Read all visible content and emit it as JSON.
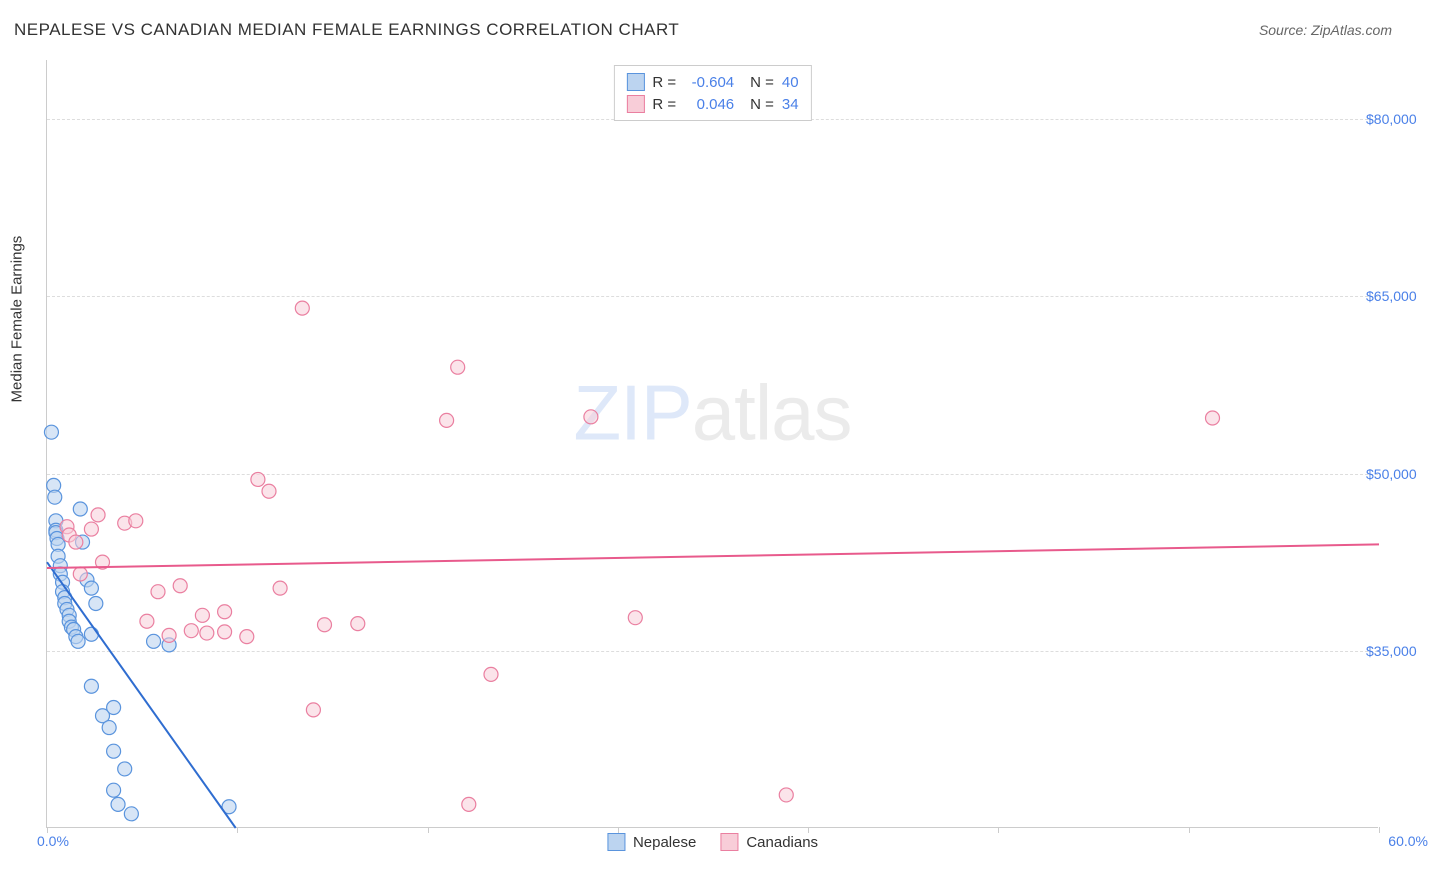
{
  "header": {
    "title": "NEPALESE VS CANADIAN MEDIAN FEMALE EARNINGS CORRELATION CHART",
    "source": "Source: ZipAtlas.com"
  },
  "watermark": {
    "part1": "ZIP",
    "part2": "atlas"
  },
  "chart": {
    "type": "scatter",
    "yaxis_title": "Median Female Earnings",
    "xlim": [
      0,
      60
    ],
    "ylim": [
      20000,
      85000
    ],
    "ytick_values": [
      35000,
      50000,
      65000,
      80000
    ],
    "ytick_labels": [
      "$35,000",
      "$50,000",
      "$65,000",
      "$80,000"
    ],
    "xtick_values": [
      0,
      8.57,
      17.14,
      25.71,
      34.29,
      42.86,
      51.43,
      60
    ],
    "xlabel_start": "0.0%",
    "xlabel_end": "60.0%",
    "background_color": "#ffffff",
    "grid_color": "#dddddd",
    "axis_color": "#cccccc",
    "marker_radius": 7,
    "marker_stroke_width": 1.2,
    "trend_line_width": 2,
    "label_color": "#4a80e8",
    "text_color": "#333333",
    "series": [
      {
        "name": "Nepalese",
        "fill": "#bcd4f0",
        "stroke": "#5a94dd",
        "fill_opacity": 0.6,
        "r": -0.604,
        "n": 40,
        "trend": {
          "x1": 0,
          "y1": 42500,
          "x2": 8.5,
          "y2": 20000,
          "color": "#2f6dd0"
        },
        "points": [
          [
            0.2,
            53500
          ],
          [
            0.3,
            49000
          ],
          [
            0.35,
            48000
          ],
          [
            0.4,
            46000
          ],
          [
            0.4,
            45200
          ],
          [
            0.4,
            45000
          ],
          [
            0.45,
            44500
          ],
          [
            0.5,
            44000
          ],
          [
            0.5,
            43000
          ],
          [
            0.6,
            42200
          ],
          [
            0.6,
            41500
          ],
          [
            0.7,
            40800
          ],
          [
            0.7,
            40000
          ],
          [
            0.8,
            39500
          ],
          [
            0.8,
            39000
          ],
          [
            0.9,
            38500
          ],
          [
            1.0,
            38000
          ],
          [
            1.0,
            37500
          ],
          [
            1.1,
            37000
          ],
          [
            1.2,
            36800
          ],
          [
            1.3,
            36200
          ],
          [
            1.4,
            35800
          ],
          [
            1.5,
            47000
          ],
          [
            1.6,
            44200
          ],
          [
            1.8,
            41000
          ],
          [
            2.0,
            40300
          ],
          [
            2.0,
            36400
          ],
          [
            2.2,
            39000
          ],
          [
            2.5,
            29500
          ],
          [
            2.8,
            28500
          ],
          [
            3.0,
            30200
          ],
          [
            3.0,
            26500
          ],
          [
            3.5,
            25000
          ],
          [
            3.0,
            23200
          ],
          [
            3.2,
            22000
          ],
          [
            3.8,
            21200
          ],
          [
            4.8,
            35800
          ],
          [
            5.5,
            35500
          ],
          [
            8.2,
            21800
          ],
          [
            2.0,
            32000
          ]
        ]
      },
      {
        "name": "Canadians",
        "fill": "#f8cdd8",
        "stroke": "#ea7fa0",
        "fill_opacity": 0.55,
        "r": 0.046,
        "n": 34,
        "trend": {
          "x1": 0,
          "y1": 42000,
          "x2": 60,
          "y2": 44000,
          "color": "#e85a8c"
        },
        "points": [
          [
            0.9,
            45500
          ],
          [
            1.0,
            44800
          ],
          [
            1.3,
            44200
          ],
          [
            1.5,
            41500
          ],
          [
            2.0,
            45300
          ],
          [
            2.3,
            46500
          ],
          [
            2.5,
            42500
          ],
          [
            3.5,
            45800
          ],
          [
            4.0,
            46000
          ],
          [
            4.5,
            37500
          ],
          [
            5.0,
            40000
          ],
          [
            5.5,
            36300
          ],
          [
            6.0,
            40500
          ],
          [
            6.5,
            36700
          ],
          [
            7.0,
            38000
          ],
          [
            7.2,
            36500
          ],
          [
            8.0,
            36600
          ],
          [
            8.0,
            38300
          ],
          [
            9.5,
            49500
          ],
          [
            10.0,
            48500
          ],
          [
            10.5,
            40300
          ],
          [
            11.5,
            64000
          ],
          [
            12.5,
            37200
          ],
          [
            12.0,
            30000
          ],
          [
            14.0,
            37300
          ],
          [
            18.5,
            59000
          ],
          [
            18.0,
            54500
          ],
          [
            20.0,
            33000
          ],
          [
            24.5,
            54800
          ],
          [
            26.5,
            37800
          ],
          [
            19.0,
            22000
          ],
          [
            33.3,
            22800
          ],
          [
            52.5,
            54700
          ],
          [
            9.0,
            36200
          ]
        ]
      }
    ],
    "legend_top": {
      "r_label": "R =",
      "n_label": "N ="
    },
    "legend_bottom": {
      "items": [
        "Nepalese",
        "Canadians"
      ]
    }
  }
}
